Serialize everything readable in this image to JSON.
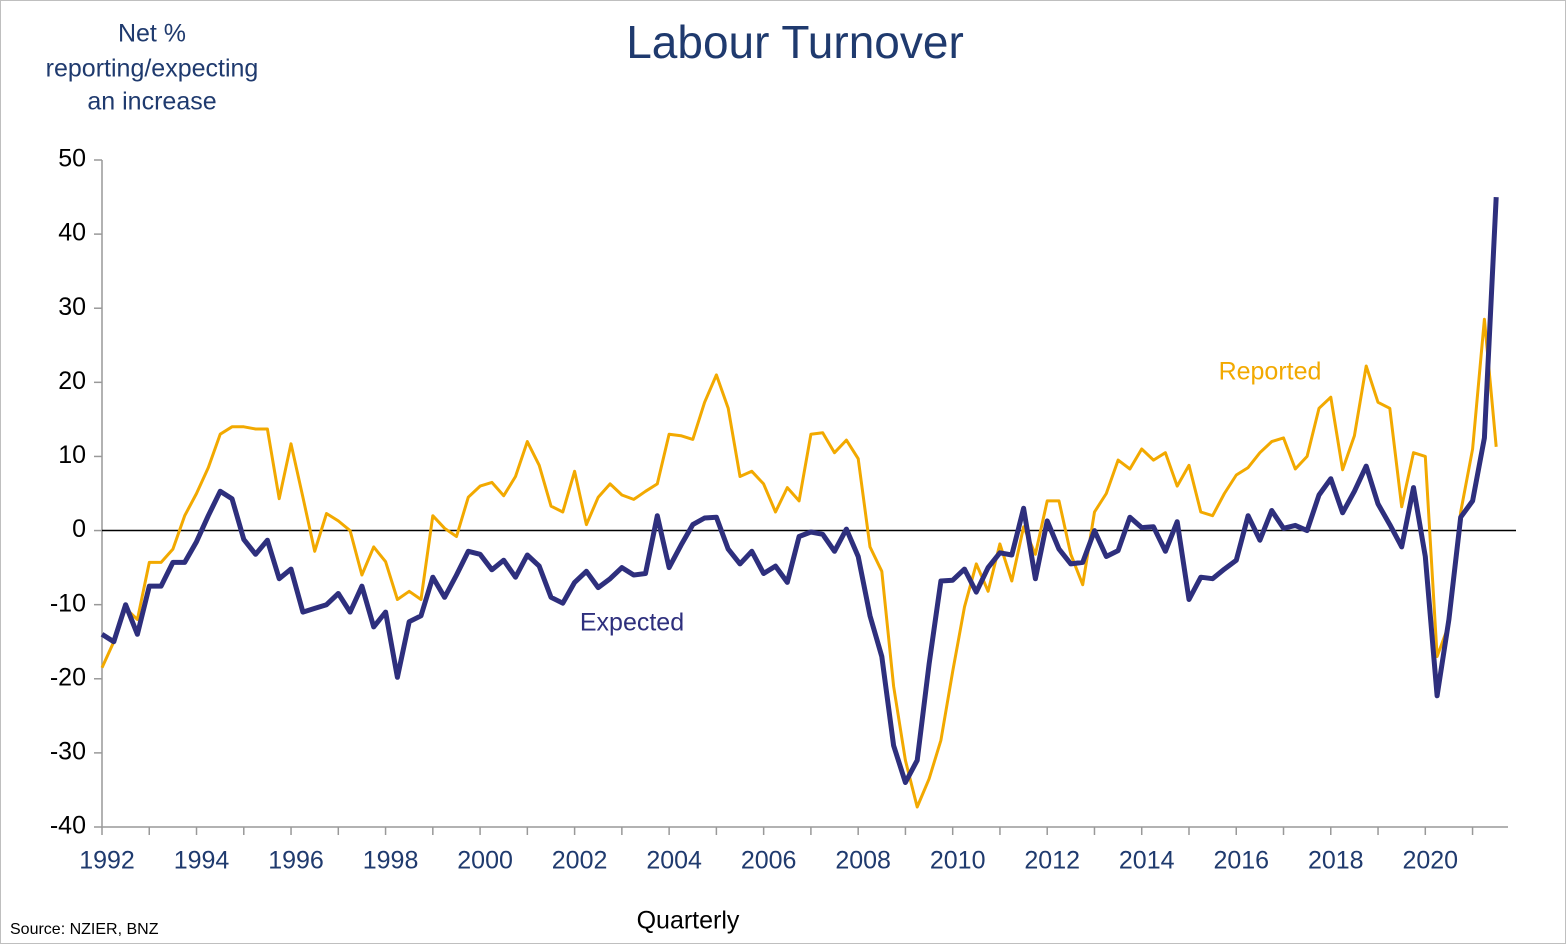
{
  "chart_data": {
    "type": "line",
    "title": "Labour Turnover",
    "ylabel": [
      "Net %",
      "reporting/expecting",
      "an increase"
    ],
    "xlabel": "Quarterly",
    "source": "Source: NZIER, BNZ",
    "xlim": [
      1992,
      2021.75
    ],
    "xticks": [
      1992,
      1994,
      1996,
      1998,
      2000,
      2002,
      2004,
      2006,
      2008,
      2010,
      2012,
      2014,
      2016,
      2018,
      2020
    ],
    "minor_xticks": [
      1993,
      1995,
      1997,
      1999,
      2001,
      2003,
      2005,
      2007,
      2009,
      2011,
      2013,
      2015,
      2017,
      2019,
      2021
    ],
    "ylim": [
      -40,
      50
    ],
    "yticks": [
      -40,
      -30,
      -20,
      -10,
      0,
      10,
      20,
      30,
      40,
      50
    ],
    "zero_line": 0,
    "x": [
      1992,
      1992.25,
      1992.5,
      1992.75,
      1993,
      1993.25,
      1993.5,
      1993.75,
      1994,
      1994.25,
      1994.5,
      1994.75,
      1995,
      1995.25,
      1995.5,
      1995.75,
      1996,
      1996.25,
      1996.5,
      1996.75,
      1997,
      1997.25,
      1997.5,
      1997.75,
      1998,
      1998.25,
      1998.5,
      1998.75,
      1999,
      1999.25,
      1999.5,
      1999.75,
      2000,
      2000.25,
      2000.5,
      2000.75,
      2001,
      2001.25,
      2001.5,
      2001.75,
      2002,
      2002.25,
      2002.5,
      2002.75,
      2003,
      2003.25,
      2003.5,
      2003.75,
      2004,
      2004.25,
      2004.5,
      2004.75,
      2005,
      2005.25,
      2005.5,
      2005.75,
      2006,
      2006.25,
      2006.5,
      2006.75,
      2007,
      2007.25,
      2007.5,
      2007.75,
      2008,
      2008.25,
      2008.5,
      2008.75,
      2009,
      2009.25,
      2009.5,
      2009.75,
      2010,
      2010.25,
      2010.5,
      2010.75,
      2011,
      2011.25,
      2011.5,
      2011.75,
      2012,
      2012.25,
      2012.5,
      2012.75,
      2013,
      2013.25,
      2013.5,
      2013.75,
      2014,
      2014.25,
      2014.5,
      2014.75,
      2015,
      2015.25,
      2015.5,
      2015.75,
      2016,
      2016.25,
      2016.5,
      2016.75,
      2017,
      2017.25,
      2017.5,
      2017.75,
      2018,
      2018.25,
      2018.5,
      2018.75,
      2019,
      2019.25,
      2019.5,
      2019.75,
      2020,
      2020.25,
      2020.5,
      2020.75,
      2021,
      2021.25,
      2021.5
    ],
    "series": [
      {
        "name": "Reported",
        "color": "#f2a900",
        "width": 3,
        "values": [
          -18.5,
          -15,
          -10.5,
          -12,
          -4.3,
          -4.3,
          -2.5,
          2,
          5,
          8.5,
          13,
          14,
          14,
          13.7,
          13.7,
          4.3,
          11.7,
          4.5,
          -2.8,
          2.3,
          1.3,
          0,
          -6,
          -2.2,
          -4.2,
          -9.3,
          -8.2,
          -9.3,
          2,
          0.3,
          -0.8,
          4.5,
          6,
          6.5,
          4.7,
          7.3,
          12,
          8.8,
          3.3,
          2.5,
          8,
          0.8,
          4.5,
          6.3,
          4.8,
          4.2,
          5.3,
          6.3,
          13,
          12.8,
          12.3,
          17.3,
          21,
          16.5,
          7.3,
          8,
          6.3,
          2.5,
          5.8,
          4,
          13,
          13.2,
          10.5,
          12.2,
          9.7,
          -2.2,
          -5.5,
          -21,
          -31,
          -37.3,
          -33.5,
          -28.3,
          -19,
          -10.3,
          -4.5,
          -8.2,
          -1.8,
          -6.8,
          0.5,
          -3.2,
          4,
          4,
          -3.2,
          -7.3,
          2.5,
          5,
          9.5,
          8.3,
          11,
          9.5,
          10.5,
          6,
          8.8,
          2.5,
          2,
          5,
          7.5,
          8.5,
          10.5,
          12,
          12.5,
          8.3,
          10,
          16.5,
          18,
          8.2,
          12.8,
          22.2,
          17.3,
          16.5,
          3.2,
          10.5,
          10,
          -17,
          -12.7,
          2.5,
          11,
          28.5,
          11.3
        ]
      },
      {
        "name": "Expected",
        "color": "#2e2f7d",
        "width": 5,
        "values": [
          -14,
          -15,
          -10,
          -14,
          -7.5,
          -7.5,
          -4.3,
          -4.3,
          -1.5,
          2,
          5.3,
          4.3,
          -1.2,
          -3.2,
          -1.3,
          -6.5,
          -5.2,
          -11,
          -10.5,
          -10,
          -8.5,
          -11,
          -7.5,
          -13,
          -11,
          -19.8,
          -12.3,
          -11.5,
          -6.3,
          -9,
          -6,
          -2.8,
          -3.2,
          -5.3,
          -4,
          -6.3,
          -3.3,
          -4.8,
          -9,
          -9.8,
          -7,
          -5.5,
          -7.7,
          -6.5,
          -5,
          -6,
          -5.8,
          2,
          -5,
          -2,
          0.8,
          1.7,
          1.8,
          -2.5,
          -4.5,
          -2.8,
          -5.8,
          -4.8,
          -7,
          -0.8,
          -0.2,
          -0.5,
          -2.8,
          0.2,
          -3.5,
          -11.5,
          -17,
          -29,
          -34,
          -31,
          -18,
          -6.8,
          -6.7,
          -5.2,
          -8.3,
          -5,
          -3,
          -3.3,
          3,
          -6.5,
          1.3,
          -2.5,
          -4.5,
          -4.3,
          0,
          -3.5,
          -2.7,
          1.8,
          0.4,
          0.5,
          -2.8,
          1.2,
          -9.3,
          -6.3,
          -6.5,
          -5.2,
          -4,
          2,
          -1.3,
          2.7,
          0.3,
          0.7,
          0,
          4.8,
          7,
          2.4,
          5.3,
          8.7,
          3.6,
          0.8,
          -2.2,
          5.8,
          -3.5,
          -22.3,
          -12,
          1.8,
          4,
          12.5,
          45
        ]
      }
    ]
  }
}
